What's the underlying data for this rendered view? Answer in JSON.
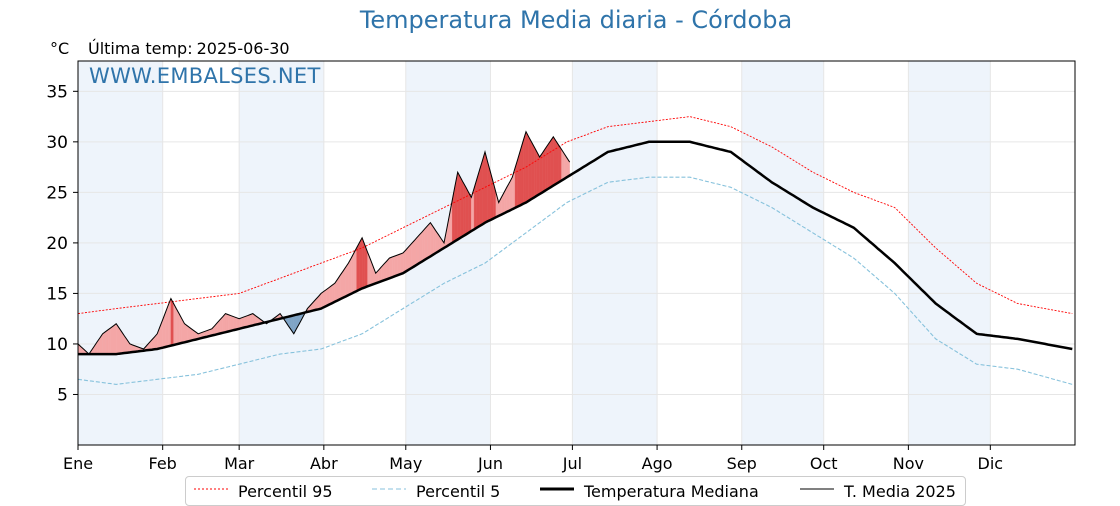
{
  "header": {
    "title": "Temperatura Media diaria - Córdoba",
    "unit": "°C",
    "last_temp_label": "Última temp:",
    "last_temp_date": "2025-06-30",
    "watermark": "WWW.EMBALSES.NET"
  },
  "colors": {
    "title": "#2f74aa",
    "p95": "#ff0000",
    "p5": "#87c2dc",
    "median": "#000000",
    "current": "#000000",
    "above_fill": "#f4a6a6",
    "above_fill_strong": "#e05050",
    "below_fill": "#7fa4c6",
    "below_fill_strong": "#2f5f8f",
    "month_band": "#eef4fb"
  },
  "chart_data": {
    "type": "line",
    "title": "Temperatura Media diaria - Córdoba",
    "ylabel": "°C",
    "xlim": [
      1,
      366
    ],
    "ylim": [
      0,
      38
    ],
    "yticks": [
      5,
      10,
      15,
      20,
      25,
      30,
      35
    ],
    "months": [
      "Ene",
      "Feb",
      "Mar",
      "Abr",
      "May",
      "Jun",
      "Jul",
      "Ago",
      "Sep",
      "Oct",
      "Nov",
      "Dic"
    ],
    "month_start_days": [
      1,
      32,
      60,
      91,
      121,
      152,
      182,
      213,
      244,
      274,
      305,
      335
    ],
    "grid": true,
    "legend_position": "bottom-center",
    "series": [
      {
        "name": "Percentil 95",
        "style": "dotted",
        "days": [
          1,
          15,
          30,
          45,
          60,
          75,
          90,
          105,
          120,
          135,
          150,
          165,
          180,
          195,
          210,
          225,
          240,
          255,
          270,
          285,
          300,
          315,
          330,
          345,
          365
        ],
        "values": [
          13,
          13.5,
          14,
          14.5,
          15,
          16.5,
          18,
          19.5,
          21.5,
          23.5,
          25.5,
          27.5,
          30,
          31.5,
          32,
          32.5,
          31.5,
          29.5,
          27,
          25,
          23.5,
          19.5,
          16,
          14,
          13
        ]
      },
      {
        "name": "Percentil 5",
        "style": "dashed",
        "days": [
          1,
          15,
          30,
          45,
          60,
          75,
          90,
          105,
          120,
          135,
          150,
          165,
          180,
          195,
          210,
          225,
          240,
          255,
          270,
          285,
          300,
          315,
          330,
          345,
          365
        ],
        "values": [
          6.5,
          6,
          6.5,
          7,
          8,
          9,
          9.5,
          11,
          13.5,
          16,
          18,
          21,
          24,
          26,
          26.5,
          26.5,
          25.5,
          23.5,
          21,
          18.5,
          15,
          10.5,
          8,
          7.5,
          6
        ]
      },
      {
        "name": "Temperatura Mediana",
        "style": "thick",
        "days": [
          1,
          15,
          30,
          45,
          60,
          75,
          90,
          105,
          120,
          135,
          150,
          165,
          180,
          195,
          210,
          225,
          240,
          255,
          270,
          285,
          300,
          315,
          330,
          345,
          365
        ],
        "values": [
          9,
          9,
          9.5,
          10.5,
          11.5,
          12.5,
          13.5,
          15.5,
          17,
          19.5,
          22,
          24,
          26.5,
          29,
          30,
          30,
          29,
          26,
          23.5,
          21.5,
          18,
          14,
          11,
          10.5,
          9.5
        ]
      },
      {
        "name": "T. Media 2025",
        "style": "thin",
        "days": [
          1,
          5,
          10,
          15,
          20,
          25,
          30,
          35,
          40,
          45,
          50,
          55,
          60,
          65,
          70,
          75,
          80,
          85,
          90,
          95,
          100,
          105,
          110,
          115,
          120,
          125,
          130,
          135,
          140,
          145,
          150,
          155,
          160,
          165,
          170,
          175,
          181
        ],
        "values": [
          10,
          9,
          11,
          12,
          10,
          9.5,
          11,
          14.5,
          12,
          11,
          11.5,
          13,
          12.5,
          13,
          12,
          13,
          11,
          13.5,
          15,
          16,
          18,
          20.5,
          17,
          18.5,
          19,
          20.5,
          22,
          20,
          27,
          24.5,
          29,
          24,
          26.5,
          31,
          28.5,
          30.5,
          28
        ]
      }
    ]
  },
  "legend": {
    "items": [
      {
        "label": "Percentil 95"
      },
      {
        "label": "Percentil 5"
      },
      {
        "label": "Temperatura Mediana"
      },
      {
        "label": "T. Media 2025"
      }
    ]
  }
}
